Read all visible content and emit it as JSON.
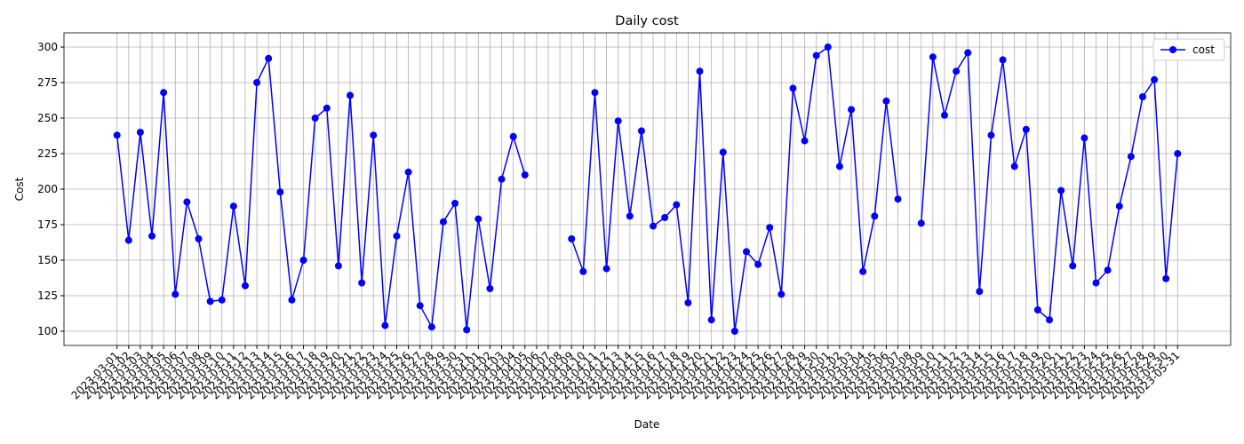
{
  "chart_data": {
    "type": "line",
    "title": "Daily cost",
    "x_label": "Date",
    "y_label": "Cost",
    "x": [
      "2023-03-01",
      "2023-03-02",
      "2023-03-03",
      "2023-03-04",
      "2023-03-05",
      "2023-03-06",
      "2023-03-07",
      "2023-03-08",
      "2023-03-09",
      "2023-03-10",
      "2023-03-11",
      "2023-03-12",
      "2023-03-13",
      "2023-03-14",
      "2023-03-15",
      "2023-03-16",
      "2023-03-17",
      "2023-03-18",
      "2023-03-19",
      "2023-03-20",
      "2023-03-21",
      "2023-03-22",
      "2023-03-23",
      "2023-03-24",
      "2023-03-25",
      "2023-03-26",
      "2023-03-27",
      "2023-03-28",
      "2023-03-29",
      "2023-03-30",
      "2023-03-31",
      "2023-04-01",
      "2023-04-02",
      "2023-04-03",
      "2023-04-04",
      "2023-04-05",
      "2023-04-06",
      "2023-04-07",
      "2023-04-08",
      "2023-04-09",
      "2023-04-10",
      "2023-04-11",
      "2023-04-12",
      "2023-04-13",
      "2023-04-14",
      "2023-04-15",
      "2023-04-16",
      "2023-04-17",
      "2023-04-18",
      "2023-04-19",
      "2023-04-20",
      "2023-04-21",
      "2023-04-22",
      "2023-04-23",
      "2023-04-24",
      "2023-04-25",
      "2023-04-26",
      "2023-04-27",
      "2023-04-28",
      "2023-04-29",
      "2023-04-30",
      "2023-05-01",
      "2023-05-02",
      "2023-05-03",
      "2023-05-04",
      "2023-05-05",
      "2023-05-06",
      "2023-05-07",
      "2023-05-08",
      "2023-05-09",
      "2023-05-10",
      "2023-05-11",
      "2023-05-12",
      "2023-05-13",
      "2023-05-14",
      "2023-05-15",
      "2023-05-16",
      "2023-05-17",
      "2023-05-18",
      "2023-05-19",
      "2023-05-20",
      "2023-05-21",
      "2023-05-22",
      "2023-05-23",
      "2023-05-24",
      "2023-05-25",
      "2023-05-26",
      "2023-05-27",
      "2023-05-28",
      "2023-05-29",
      "2023-05-30",
      "2023-05-31"
    ],
    "series": [
      {
        "name": "cost",
        "color": "#0000ff",
        "values": [
          238,
          164,
          240,
          167,
          268,
          126,
          191,
          165,
          121,
          122,
          188,
          132,
          275,
          292,
          198,
          122,
          150,
          250,
          257,
          146,
          266,
          134,
          238,
          104,
          167,
          212,
          118,
          103,
          177,
          190,
          101,
          179,
          130,
          207,
          237,
          210,
          null,
          null,
          null,
          165,
          142,
          268,
          144,
          248,
          181,
          241,
          174,
          180,
          189,
          120,
          283,
          108,
          226,
          100,
          156,
          147,
          173,
          126,
          271,
          234,
          294,
          300,
          216,
          256,
          142,
          181,
          262,
          193,
          null,
          176,
          293,
          252,
          283,
          296,
          128,
          238,
          291,
          216,
          242,
          115,
          108,
          199,
          146,
          236,
          134,
          143,
          188,
          223,
          265,
          277,
          137,
          225
        ]
      }
    ],
    "ylim": [
      90,
      310
    ],
    "yticks": [
      100,
      125,
      150,
      175,
      200,
      225,
      250,
      275,
      300
    ],
    "grid": true,
    "legend": "upper right"
  }
}
